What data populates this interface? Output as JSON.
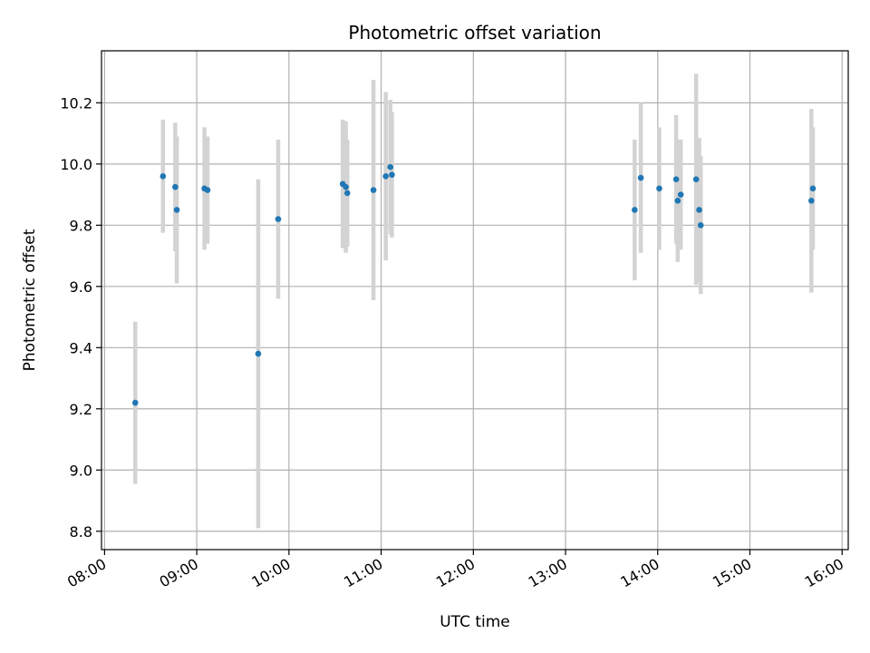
{
  "chart_data": {
    "type": "scatter",
    "title": "Photometric offset variation",
    "xlabel": "UTC time",
    "ylabel": "Photometric offset",
    "x_ticks": [
      "08:00",
      "09:00",
      "10:00",
      "11:00",
      "12:00",
      "13:00",
      "14:00",
      "15:00",
      "16:00"
    ],
    "y_ticks": [
      "8.8",
      "9.0",
      "9.2",
      "9.4",
      "9.6",
      "9.8",
      "10.0",
      "10.2"
    ],
    "xlim": [
      "07:58",
      "16:04"
    ],
    "ylim": [
      8.74,
      10.37
    ],
    "grid": true,
    "colors": {
      "point": "#1f77b4",
      "errorbar": "#d3d3d3",
      "grid": "#b0b0b0"
    },
    "points": [
      {
        "x": "08:20",
        "y": 9.22,
        "yerr": 0.265
      },
      {
        "x": "08:38",
        "y": 9.96,
        "yerr": 0.185
      },
      {
        "x": "08:46",
        "y": 9.925,
        "yerr": 0.21
      },
      {
        "x": "08:47",
        "y": 9.85,
        "yerr": 0.24
      },
      {
        "x": "09:05",
        "y": 9.92,
        "yerr": 0.2
      },
      {
        "x": "09:07",
        "y": 9.915,
        "yerr": 0.175
      },
      {
        "x": "09:40",
        "y": 9.38,
        "yerr": 0.57
      },
      {
        "x": "09:53",
        "y": 9.82,
        "yerr": 0.26
      },
      {
        "x": "10:35",
        "y": 9.935,
        "yerr": 0.21
      },
      {
        "x": "10:37",
        "y": 9.925,
        "yerr": 0.215
      },
      {
        "x": "10:38",
        "y": 9.905,
        "yerr": 0.175
      },
      {
        "x": "10:55",
        "y": 9.915,
        "yerr": 0.36
      },
      {
        "x": "11:03",
        "y": 9.96,
        "yerr": 0.275
      },
      {
        "x": "11:06",
        "y": 9.99,
        "yerr": 0.22
      },
      {
        "x": "11:07",
        "y": 9.965,
        "yerr": 0.205
      },
      {
        "x": "13:45",
        "y": 9.85,
        "yerr": 0.23
      },
      {
        "x": "13:49",
        "y": 9.955,
        "yerr": 0.245
      },
      {
        "x": "14:01",
        "y": 9.92,
        "yerr": 0.2
      },
      {
        "x": "14:12",
        "y": 9.95,
        "yerr": 0.21
      },
      {
        "x": "14:13",
        "y": 9.88,
        "yerr": 0.2
      },
      {
        "x": "14:15",
        "y": 9.9,
        "yerr": 0.18
      },
      {
        "x": "14:25",
        "y": 9.95,
        "yerr": 0.345
      },
      {
        "x": "14:27",
        "y": 9.85,
        "yerr": 0.235
      },
      {
        "x": "14:28",
        "y": 9.8,
        "yerr": 0.225
      },
      {
        "x": "15:40",
        "y": 9.88,
        "yerr": 0.3
      },
      {
        "x": "15:41",
        "y": 9.92,
        "yerr": 0.2
      }
    ]
  }
}
